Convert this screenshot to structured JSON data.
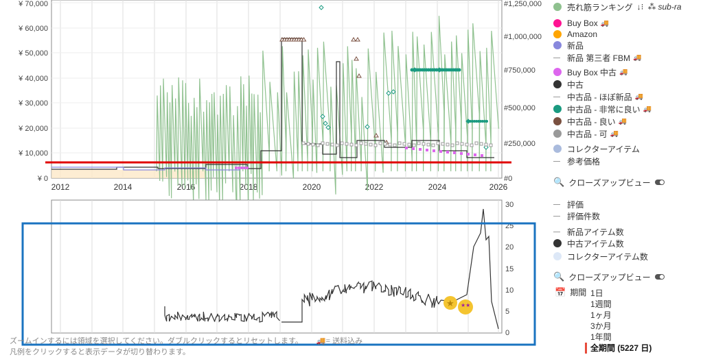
{
  "top_chart": {
    "left_axis_labels": [
      "¥ 70,000",
      "¥ 60,000",
      "¥ 50,000",
      "¥ 40,000",
      "¥ 30,000",
      "¥ 20,000",
      "¥ 10,000",
      "¥ 0"
    ],
    "right_axis_labels": [
      "#1,250,000",
      "#1,000,000",
      "#750,000",
      "#500,000",
      "#250,000",
      "#0"
    ],
    "x_axis_labels": [
      "2012",
      "2014",
      "2016",
      "2018",
      "2020",
      "2022",
      "2024",
      "2026"
    ]
  },
  "bottom_chart": {
    "right_axis_labels": [
      "30",
      "25",
      "20",
      "15",
      "10",
      "5",
      "0"
    ]
  },
  "legend": {
    "sales_rank": "売れ筋ランキング",
    "sales_rank_suffix": "sub-ra",
    "buy_box": "Buy Box",
    "amazon": "Amazon",
    "new": "新品",
    "new_3rd_fbm": "新品 第三者 FBM",
    "buy_box_used": "Buy Box 中古",
    "used": "中古",
    "used_like_new": "中古品 - ほぼ新品",
    "used_very_good": "中古品 - 非常に良い",
    "used_good": "中古品 - 良い",
    "used_acceptable": "中古品 - 可",
    "collectible": "コレクターアイテム",
    "reference_price": "参考価格",
    "closeup_view": "クローズアップビュー",
    "rating": "評価",
    "rating_count": "評価件数",
    "new_item_count": "新品アイテム数",
    "used_item_count": "中古アイテム数",
    "collectible_item_count": "コレクターアイテム数",
    "closeup_view_2": "クローズアップビュー",
    "period": "期間",
    "ranges": [
      "1日",
      "1週間",
      "1ヶ月",
      "3か月",
      "1年間"
    ],
    "all_range": "全期間 (5227 日)"
  },
  "hint_text": "ズームインするには領域を選択してください。ダブルクリックするとリセットします。",
  "hint_shipping": "= 送料込み",
  "hint_text_2": "凡例をクリックすると表示データが切り替わります。",
  "colors": {
    "sales_rank": "#8fc18f",
    "buy_box": "#ff1493",
    "amazon": "#ffa500",
    "new": "#8888dd",
    "used": "#333333",
    "used_very_good": "#1a9a80",
    "used_good": "#7a5040",
    "used_acceptable": "#999999",
    "buy_box_used": "#dd66ee",
    "collectible": "#aabbdd",
    "red_line": "#e00000",
    "blue_box": "#1a73c0"
  }
}
